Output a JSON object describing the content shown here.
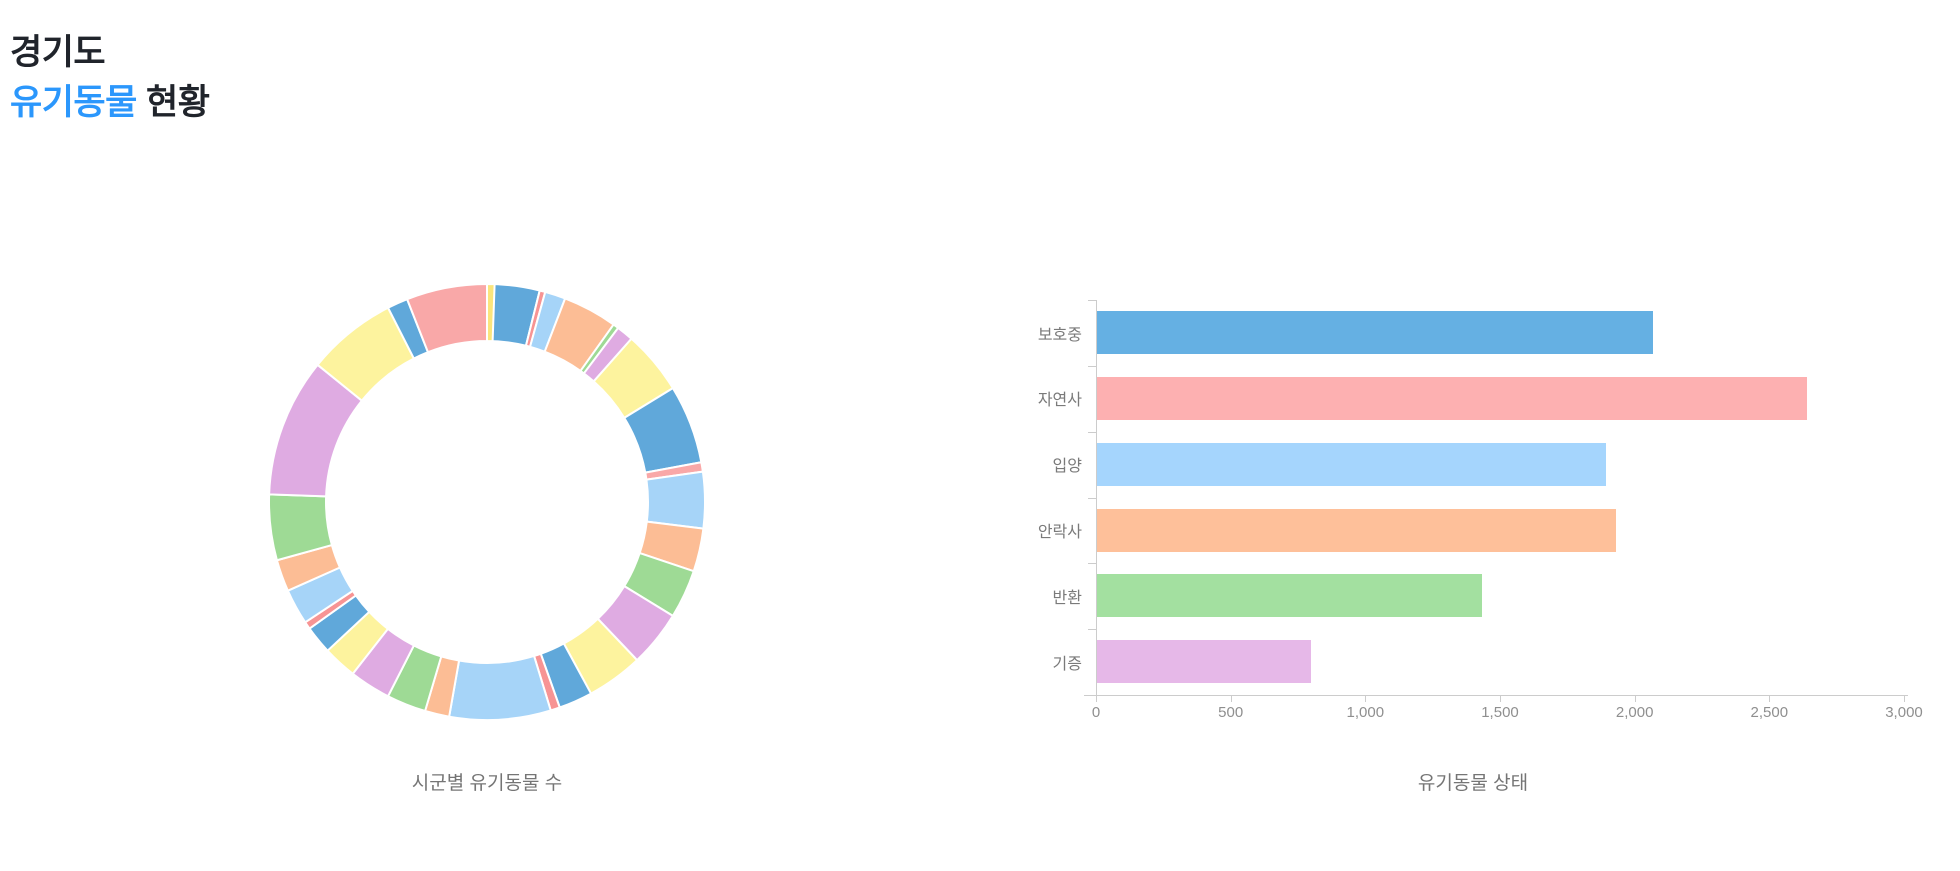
{
  "header": {
    "line1": "경기도",
    "line2_highlight": "유기동물",
    "line2_rest": " 현황"
  },
  "theme": {
    "highlight_blue": "#2b97fc",
    "heading_color": "#20242b",
    "chart_title_color": "#757575",
    "axis_color": "#cccccc",
    "tick_label_color": "#8f8f8f",
    "category_label_color": "#7a7a7a",
    "background": "#ffffff"
  },
  "chart_data": [
    {
      "type": "pie",
      "subtype": "donut",
      "title": "시군별 유기동물 수",
      "value_unit": "degrees-of-arc (unlabeled slices, clockwise from 12 o'clock)",
      "palette": [
        "#60a8da",
        "#f9a8a8",
        "#a6d4f8",
        "#fcbd95",
        "#9eda95",
        "#dfabe2",
        "#fdf39e"
      ],
      "segments": [
        {
          "color": "#60a8da",
          "deg": 14.0
        },
        {
          "color": "#f79494",
          "deg": 1.5
        },
        {
          "color": "#a6d4f8",
          "deg": 5.5
        },
        {
          "color": "#fcbd95",
          "deg": 14.5
        },
        {
          "color": "#9eda95",
          "deg": 1.5
        },
        {
          "color": "#dfabe2",
          "deg": 4.5
        },
        {
          "color": "#fdf39e",
          "deg": 17.0
        },
        {
          "color": "#60a8da",
          "deg": 21.0
        },
        {
          "color": "#f9a8a8",
          "deg": 2.5
        },
        {
          "color": "#a6d4f8",
          "deg": 15.0
        },
        {
          "color": "#fcbd95",
          "deg": 11.5
        },
        {
          "color": "#9eda95",
          "deg": 13.0
        },
        {
          "color": "#dfabe2",
          "deg": 15.0
        },
        {
          "color": "#fdf39e",
          "deg": 15.0
        },
        {
          "color": "#60a8da",
          "deg": 9.0
        },
        {
          "color": "#f79494",
          "deg": 2.5
        },
        {
          "color": "#a6d4f8",
          "deg": 27.0
        },
        {
          "color": "#fcbd95",
          "deg": 6.5
        },
        {
          "color": "#9eda95",
          "deg": 10.5
        },
        {
          "color": "#dfabe2",
          "deg": 11.0
        },
        {
          "color": "#fdf39e",
          "deg": 9.0
        },
        {
          "color": "#60a8da",
          "deg": 7.5
        },
        {
          "color": "#f79494",
          "deg": 2.0
        },
        {
          "color": "#a6d4f8",
          "deg": 9.5
        },
        {
          "color": "#fcbd95",
          "deg": 8.5
        },
        {
          "color": "#9eda95",
          "deg": 17.5
        },
        {
          "color": "#dfabe2",
          "deg": 37.0
        },
        {
          "color": "#fdf39e",
          "deg": 24.0
        },
        {
          "color": "#60a8da",
          "deg": 5.5
        },
        {
          "color": "#f9a8a8",
          "deg": 21.5
        },
        {
          "color": "#fae57d",
          "deg": 2.0
        }
      ]
    },
    {
      "type": "bar",
      "orientation": "horizontal",
      "title": "유기동물 상태",
      "categories": [
        "보호중",
        "자연사",
        "입양",
        "안락사",
        "반환",
        "기증"
      ],
      "values": [
        2065,
        2635,
        1890,
        1925,
        1430,
        795
      ],
      "bar_colors": [
        "#65b0e3",
        "#fdb0b1",
        "#a5d5fd",
        "#fec09a",
        "#a3e0a0",
        "#e6b8e8"
      ],
      "xlim": [
        0,
        3000
      ],
      "x_tick_labels": [
        "0",
        "500",
        "1,000",
        "1,500",
        "2,000",
        "2,500",
        "3,000"
      ],
      "grid": false,
      "legend": false
    }
  ]
}
